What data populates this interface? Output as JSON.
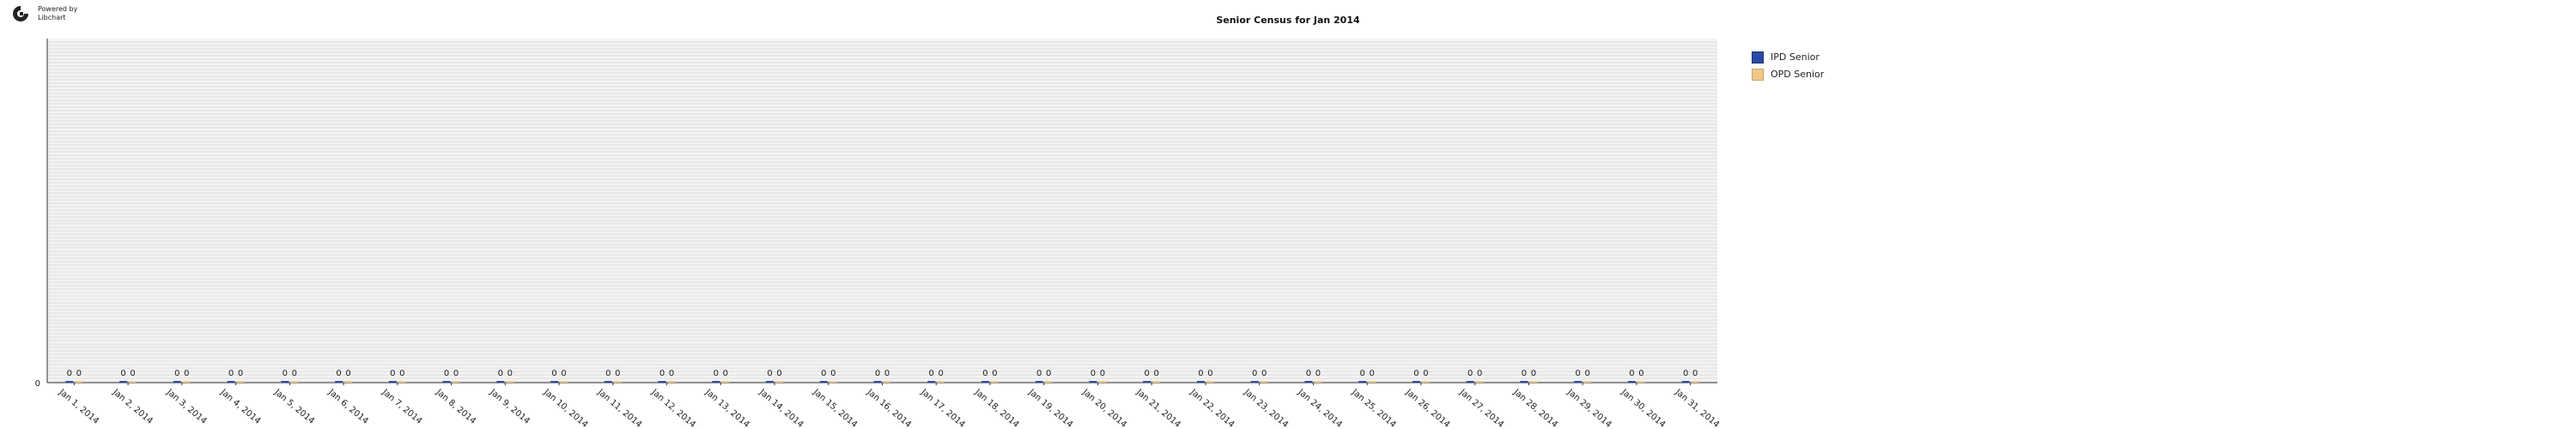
{
  "branding": {
    "line1": "Powered by",
    "line2": "Libchart"
  },
  "chart_data": {
    "type": "bar",
    "title": "Senior Census for Jan 2014",
    "xlabel": "",
    "ylabel": "",
    "ylim": [
      0,
      1
    ],
    "y_ticks": [
      "0"
    ],
    "grid": true,
    "legend_position": "top-right",
    "categories": [
      "Jan 1, 2014",
      "Jan 2, 2014",
      "Jan 3, 2014",
      "Jan 4, 2014",
      "Jan 5, 2014",
      "Jan 6, 2014",
      "Jan 7, 2014",
      "Jan 8, 2014",
      "Jan 9, 2014",
      "Jan 10, 2014",
      "Jan 11, 2014",
      "Jan 12, 2014",
      "Jan 13, 2014",
      "Jan 14, 2014",
      "Jan 15, 2014",
      "Jan 16, 2014",
      "Jan 17, 2014",
      "Jan 18, 2014",
      "Jan 19, 2014",
      "Jan 20, 2014",
      "Jan 21, 2014",
      "Jan 22, 2014",
      "Jan 23, 2014",
      "Jan 24, 2014",
      "Jan 25, 2014",
      "Jan 26, 2014",
      "Jan 27, 2014",
      "Jan 28, 2014",
      "Jan 29, 2014",
      "Jan 30, 2014",
      "Jan 31, 2014"
    ],
    "series": [
      {
        "name": "IPD Senior",
        "color": "#2b4aa8",
        "values": [
          0,
          0,
          0,
          0,
          0,
          0,
          0,
          0,
          0,
          0,
          0,
          0,
          0,
          0,
          0,
          0,
          0,
          0,
          0,
          0,
          0,
          0,
          0,
          0,
          0,
          0,
          0,
          0,
          0,
          0,
          0
        ]
      },
      {
        "name": "OPD Senior",
        "color": "#f0c98a",
        "values": [
          0,
          0,
          0,
          0,
          0,
          0,
          0,
          0,
          0,
          0,
          0,
          0,
          0,
          0,
          0,
          0,
          0,
          0,
          0,
          0,
          0,
          0,
          0,
          0,
          0,
          0,
          0,
          0,
          0,
          0,
          0
        ]
      }
    ]
  }
}
